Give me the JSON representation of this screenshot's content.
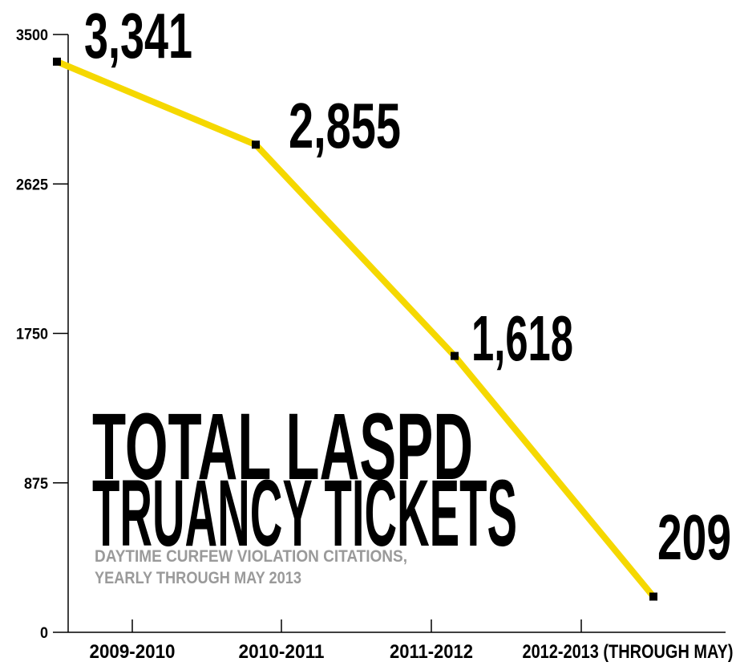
{
  "chart_data": {
    "type": "line",
    "title": [
      "TOTAL LASPD",
      "TRUANCY TICKETS"
    ],
    "subtitle": [
      "DAYTIME CURFEW VIOLATION CITATIONS,",
      "YEARLY THROUGH MAY 2013"
    ],
    "categories": [
      "2009-2010",
      "2010-2011",
      "2011-2012",
      "2012-2013 (THROUGH MAY)"
    ],
    "series": [
      {
        "name": "Truancy tickets",
        "color": "#f5d800",
        "values": [
          3341,
          2855,
          1618,
          209
        ],
        "value_labels": [
          "3,341",
          "2,855",
          "1,618",
          "209"
        ]
      }
    ],
    "ylim": [
      0,
      3500
    ],
    "yticks": [
      0,
      875,
      1750,
      2625,
      3500
    ],
    "grid": false
  }
}
